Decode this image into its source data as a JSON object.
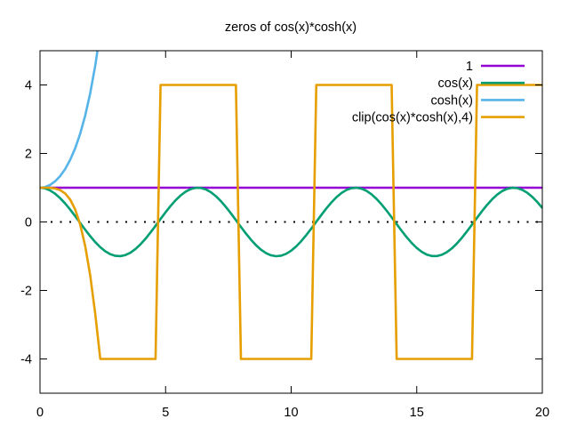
{
  "chart_data": {
    "type": "line",
    "title": "zeros of cos(x)*cosh(x)",
    "xlabel": "",
    "ylabel": "",
    "xlim": [
      0,
      20
    ],
    "ylim": [
      -5,
      5
    ],
    "x_ticks": [
      0,
      5,
      10,
      15,
      20
    ],
    "y_ticks": [
      -4,
      -2,
      0,
      2,
      4
    ],
    "x_tick_labels": [
      "0",
      "5",
      "10",
      "15",
      "20"
    ],
    "y_tick_labels": [
      "-4",
      "-2",
      "0",
      "2",
      "4"
    ],
    "zero_line": {
      "y": 0,
      "style": "dotted"
    },
    "legend_position": "top-right",
    "grid": false,
    "series": [
      {
        "name": "1",
        "color": "#9400d3",
        "expr": "1"
      },
      {
        "name": "cos(x)",
        "color": "#009e73",
        "expr": "cos(x)"
      },
      {
        "name": "cosh(x)",
        "color": "#56b4e9",
        "expr": "cosh(x)"
      },
      {
        "name": "clip(cos(x)*cosh(x),4)",
        "color": "#e69f00",
        "expr": "clip(cos(x)*cosh(x),4)"
      }
    ]
  }
}
